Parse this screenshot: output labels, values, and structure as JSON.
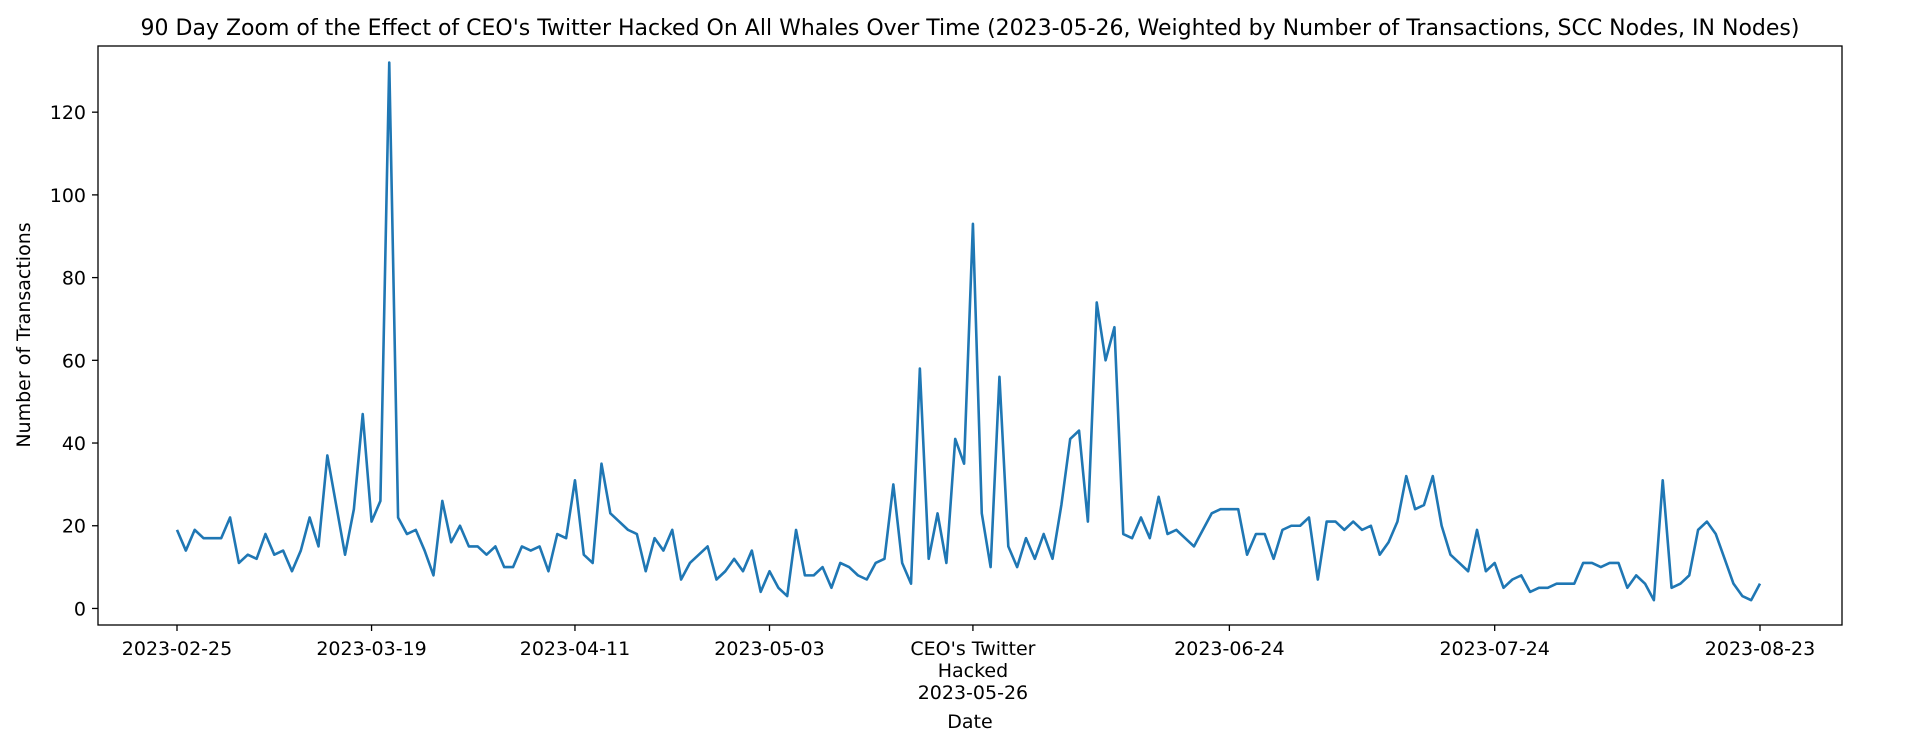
{
  "chart_data": {
    "type": "line",
    "title": "90 Day Zoom of the Effect of CEO's Twitter Hacked On All Whales Over Time (2023-05-26, Weighted by Number of Transactions, SCC Nodes, IN Nodes)",
    "xlabel": "Date",
    "ylabel": "Number of Transactions",
    "x_start": "2023-02-25",
    "x_end": "2023-08-23",
    "ylim": [
      -4,
      136
    ],
    "yticks": [
      0,
      20,
      40,
      60,
      80,
      100,
      120
    ],
    "xticks": [
      {
        "date": "2023-02-25",
        "label": [
          "2023-02-25"
        ]
      },
      {
        "date": "2023-03-19",
        "label": [
          "2023-03-19"
        ]
      },
      {
        "date": "2023-04-11",
        "label": [
          "2023-04-11"
        ]
      },
      {
        "date": "2023-05-03",
        "label": [
          "2023-05-03"
        ]
      },
      {
        "date": "2023-05-26",
        "label": [
          "CEO's Twitter",
          "Hacked",
          "2023-05-26"
        ]
      },
      {
        "date": "2023-06-24",
        "label": [
          "2023-06-24"
        ]
      },
      {
        "date": "2023-07-24",
        "label": [
          "2023-07-24"
        ]
      },
      {
        "date": "2023-08-23",
        "label": [
          "2023-08-23"
        ]
      }
    ],
    "grid": false,
    "legend": "none",
    "series": [
      {
        "color": "#1f77b4",
        "values": [
          19,
          14,
          19,
          17,
          17,
          17,
          22,
          11,
          13,
          12,
          18,
          13,
          14,
          9,
          14,
          22,
          15,
          37,
          25,
          13,
          24,
          47,
          21,
          26,
          132,
          22,
          18,
          19,
          14,
          8,
          26,
          16,
          20,
          15,
          15,
          13,
          15,
          10,
          10,
          15,
          14,
          15,
          9,
          18,
          17,
          31,
          13,
          11,
          35,
          23,
          21,
          19,
          18,
          9,
          17,
          14,
          19,
          7,
          11,
          13,
          15,
          7,
          9,
          12,
          9,
          14,
          4,
          9,
          5,
          3,
          19,
          8,
          8,
          10,
          5,
          11,
          10,
          8,
          7,
          11,
          12,
          30,
          11,
          6,
          58,
          12,
          23,
          11,
          41,
          35,
          93,
          23,
          10,
          56,
          15,
          10,
          17,
          12,
          18,
          12,
          25,
          41,
          43,
          21,
          74,
          60,
          68,
          18,
          17,
          22,
          17,
          27,
          18,
          19,
          17,
          15,
          19,
          23,
          24,
          24,
          24,
          13,
          18,
          18,
          12,
          19,
          20,
          20,
          22,
          7,
          21,
          21,
          19,
          21,
          19,
          20,
          13,
          16,
          21,
          32,
          24,
          25,
          32,
          20,
          13,
          11,
          9,
          19,
          9,
          11,
          5,
          7,
          8,
          4,
          5,
          5,
          6,
          6,
          6,
          11,
          11,
          10,
          11,
          11,
          5,
          8,
          6,
          2,
          31,
          5,
          6,
          8,
          19,
          21,
          18,
          12,
          6,
          3,
          2,
          6
        ]
      }
    ]
  }
}
